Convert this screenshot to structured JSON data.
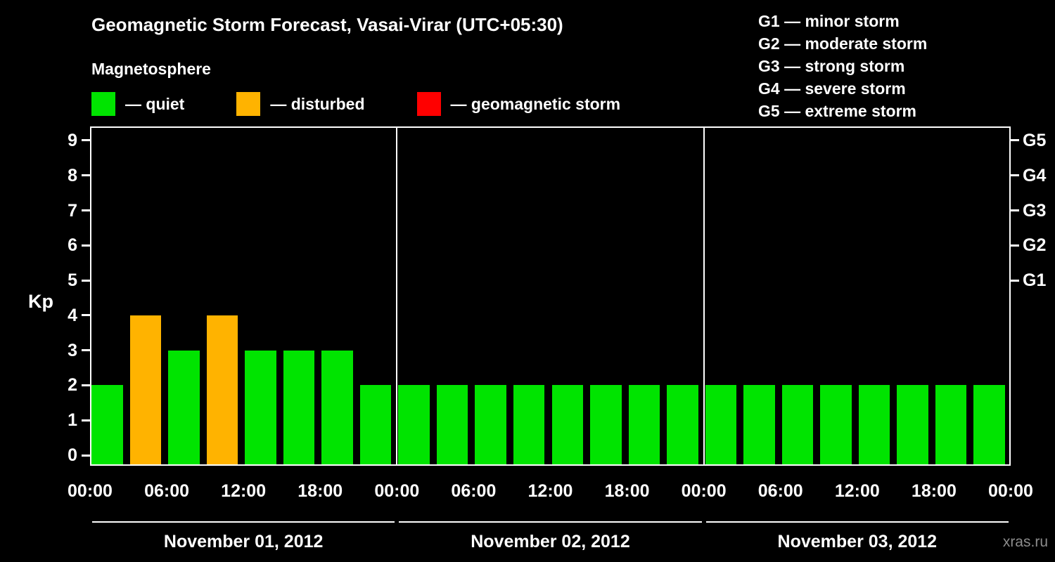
{
  "header": {
    "title": "Geomagnetic Storm Forecast, Vasai-Virar (UTC+05:30)"
  },
  "legend": {
    "title": "Magnetosphere",
    "items": [
      {
        "key": "quiet",
        "label": "— quiet",
        "color": "#00e400"
      },
      {
        "key": "disturbed",
        "label": "— disturbed",
        "color": "#ffb300"
      },
      {
        "key": "storm",
        "label": "— geomagnetic storm",
        "color": "#ff0000"
      }
    ]
  },
  "storm_scale_legend": {
    "items": [
      "G1 — minor storm",
      "G2 — moderate storm",
      "G3 — strong storm",
      "G4 — severe storm",
      "G5 — extreme storm"
    ]
  },
  "footer": {
    "watermark": "xras.ru"
  },
  "chart_data": {
    "type": "bar",
    "title": "Geomagnetic Storm Forecast, Vasai-Virar (UTC+05:30)",
    "ylabel": "Kp",
    "ylim": [
      0,
      9
    ],
    "yticks": [
      0,
      1,
      2,
      3,
      4,
      5,
      6,
      7,
      8,
      9
    ],
    "right_axis": [
      {
        "label": "G1",
        "kp": 5
      },
      {
        "label": "G2",
        "kp": 6
      },
      {
        "label": "G3",
        "kp": 7
      },
      {
        "label": "G4",
        "kp": 8
      },
      {
        "label": "G5",
        "kp": 9
      }
    ],
    "x_ticks": [
      "00:00",
      "06:00",
      "12:00",
      "18:00",
      "00:00",
      "06:00",
      "12:00",
      "18:00",
      "00:00",
      "06:00",
      "12:00",
      "18:00",
      "00:00"
    ],
    "bar_interval_hours": 3,
    "days": [
      {
        "date": "November 01, 2012",
        "kp_values": [
          2,
          4,
          3,
          4,
          3,
          3,
          3,
          2
        ]
      },
      {
        "date": "November 02, 2012",
        "kp_values": [
          2,
          2,
          2,
          2,
          2,
          2,
          2,
          2
        ]
      },
      {
        "date": "November 03, 2012",
        "kp_values": [
          2,
          2,
          2,
          2,
          2,
          2,
          2,
          2
        ]
      }
    ],
    "color_rules": {
      "quiet_max_kp": 3,
      "disturbed_max_kp": 4
    },
    "legend_position": "top",
    "grid": false
  }
}
